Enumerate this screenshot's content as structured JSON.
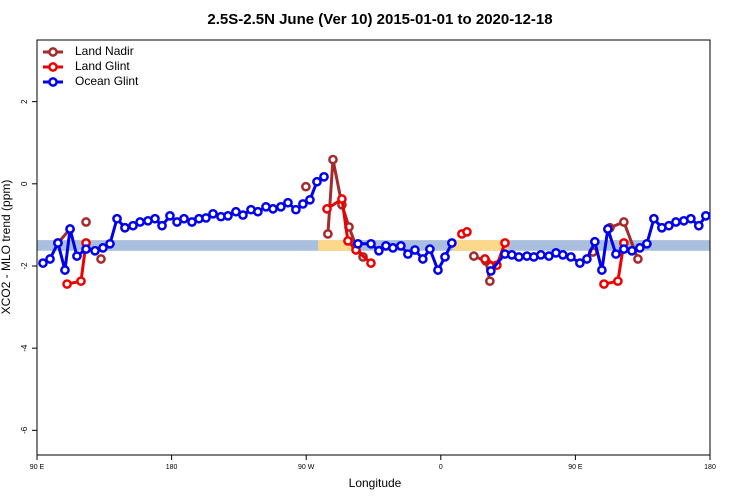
{
  "chart_data": {
    "type": "line",
    "title": "2.5S-2.5N June (Ver 10)   2015-01-01 to 2020-12-18",
    "xlabel": "Longitude",
    "ylabel": "XCO2 - MLO trend (ppm)",
    "xlim": [
      90,
      540
    ],
    "ylim": [
      -6.6,
      3.5
    ],
    "xticks": [
      {
        "value": 90,
        "label": "90 E"
      },
      180,
      {
        "value": 270,
        "label": "90 W"
      },
      {
        "value": 360,
        "label": "0"
      },
      {
        "value": 450,
        "label": "90 E"
      },
      {
        "value": 540,
        "label": "180"
      }
    ],
    "yticks": [
      2,
      0,
      -2,
      -4,
      -6
    ],
    "grid": false,
    "legend": "top-left",
    "bands": [
      {
        "x": [
          90,
          540
        ],
        "y": [
          -1.63,
          -1.37
        ],
        "color": "#a9bfdd"
      },
      {
        "x": [
          278,
          300
        ],
        "y": [
          -1.63,
          -1.37
        ],
        "color": "#fcd98a"
      },
      {
        "x": [
          368,
          405
        ],
        "y": [
          -1.63,
          -1.37
        ],
        "color": "#fcd98a"
      }
    ],
    "series": [
      {
        "name": "Land Nadir",
        "color": "#a52a2a",
        "x": [
          104.0,
          112.1,
          122.8,
          132.8,
          269.8,
          284.5,
          287.9,
          293.9,
          298.6,
          303.3,
          308.0,
          382.1,
          390.2,
          392.8,
          461.7,
          473.1,
          482.4,
          491.8
        ],
        "values": [
          -1.44,
          -1.1,
          -0.93,
          -1.83,
          -0.07,
          -1.22,
          0.59,
          -0.51,
          -1.05,
          -1.51,
          -1.78,
          -1.76,
          -1.88,
          -2.37,
          -1.66,
          -1.07,
          -0.93,
          -1.83
        ]
      },
      {
        "name": "Land Glint",
        "color": "#ee0000",
        "x": [
          110.1,
          119.4,
          122.8,
          283.9,
          293.9,
          297.9,
          303.3,
          313.3,
          374.1,
          377.5,
          389.5,
          397.5,
          402.9,
          469.1,
          478.4,
          482.4
        ],
        "values": [
          -2.44,
          -2.37,
          -1.44,
          -0.61,
          -0.37,
          -1.39,
          -1.61,
          -1.93,
          -1.22,
          -1.17,
          -1.83,
          -1.98,
          -1.44,
          -2.44,
          -2.37,
          -1.44
        ]
      },
      {
        "name": "Ocean Glint",
        "color": "#0000ee",
        "x": [
          94.0,
          98.7,
          104.0,
          108.7,
          112.1,
          116.7,
          122.8,
          128.8,
          134.1,
          138.8,
          143.5,
          148.8,
          154.2,
          158.9,
          164.2,
          168.9,
          173.6,
          178.9,
          183.6,
          188.3,
          193.6,
          198.3,
          203.0,
          207.7,
          213.0,
          217.7,
          223.0,
          227.7,
          233.1,
          237.7,
          243.1,
          247.8,
          253.1,
          257.8,
          263.1,
          267.8,
          272.5,
          277.2,
          281.9,
          304.6,
          313.3,
          318.6,
          323.3,
          328.0,
          333.3,
          338.0,
          342.7,
          348.0,
          352.7,
          358.1,
          362.8,
          367.4,
          393.5,
          402.9,
          407.5,
          412.2,
          417.6,
          422.2,
          426.9,
          432.3,
          437.0,
          441.6,
          447.0,
          453.0,
          457.7,
          463.0,
          467.7,
          471.7,
          477.1,
          482.4,
          487.8,
          493.1,
          497.8,
          502.5,
          507.8,
          512.5,
          517.2,
          522.5,
          527.2,
          532.5,
          537.2
        ],
        "values": [
          -1.93,
          -1.83,
          -1.44,
          -2.1,
          -1.1,
          -1.76,
          -1.59,
          -1.63,
          -1.56,
          -1.46,
          -0.85,
          -1.07,
          -1.02,
          -0.93,
          -0.9,
          -0.85,
          -1.02,
          -0.78,
          -0.93,
          -0.85,
          -0.93,
          -0.85,
          -0.83,
          -0.73,
          -0.8,
          -0.78,
          -0.68,
          -0.76,
          -0.63,
          -0.68,
          -0.56,
          -0.61,
          -0.56,
          -0.46,
          -0.63,
          -0.49,
          -0.39,
          0.05,
          0.17,
          -1.46,
          -1.46,
          -1.63,
          -1.51,
          -1.56,
          -1.51,
          -1.71,
          -1.61,
          -1.83,
          -1.59,
          -2.1,
          -1.78,
          -1.44,
          -2.12,
          -1.71,
          -1.73,
          -1.78,
          -1.76,
          -1.78,
          -1.73,
          -1.76,
          -1.68,
          -1.73,
          -1.78,
          -1.93,
          -1.83,
          -1.41,
          -2.1,
          -1.1,
          -1.71,
          -1.59,
          -1.63,
          -1.56,
          -1.46,
          -0.85,
          -1.07,
          -1.02,
          -0.93,
          -0.9,
          -0.85,
          -1.02,
          -0.78
        ]
      }
    ]
  }
}
